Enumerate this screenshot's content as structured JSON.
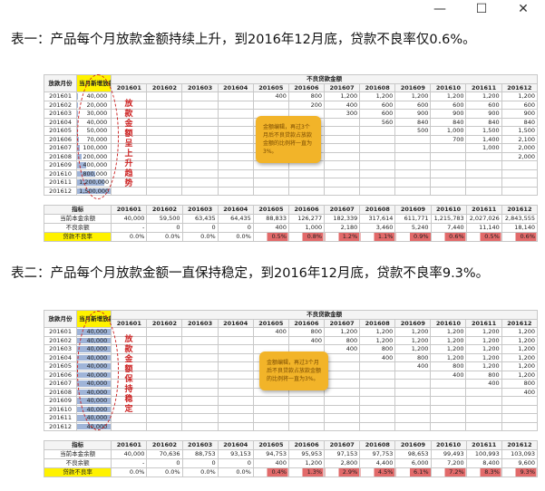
{
  "window": {
    "minimize": "—",
    "maximize": "☐",
    "close": "✕"
  },
  "heading1": "表一：产品每个月放款金额持续上升，到2016年12月底，贷款不良率仅0.6%。",
  "heading2": "表二：产品每个月放款金额一直保持稳定，到2016年12月底，贷款不良率9.3%。",
  "table1": {
    "col_month": "放款月份",
    "col_amount": "当月新增放款金额(w)",
    "group_header": "不良贷款金额",
    "months": [
      "201601",
      "201602",
      "201603",
      "201604",
      "201605",
      "201606",
      "201607",
      "201608",
      "201609",
      "201610",
      "201611",
      "201612"
    ],
    "rows": [
      {
        "m": "201601",
        "amt": "40,000",
        "frac": 0.03
      },
      {
        "m": "201602",
        "amt": "20,000",
        "frac": 0.015
      },
      {
        "m": "201603",
        "amt": "30,000",
        "frac": 0.02
      },
      {
        "m": "201604",
        "amt": "40,000",
        "frac": 0.03
      },
      {
        "m": "201605",
        "amt": "50,000",
        "frac": 0.035
      },
      {
        "m": "201606",
        "amt": "70,000",
        "frac": 0.05
      },
      {
        "m": "201607",
        "amt": "100,000",
        "frac": 0.07
      },
      {
        "m": "201608",
        "amt": "200,000",
        "frac": 0.14
      },
      {
        "m": "201609",
        "amt": "400,000",
        "frac": 0.27
      },
      {
        "m": "201610",
        "amt": "800,000",
        "frac": 0.54
      },
      {
        "m": "201611",
        "amt": "1,200,000",
        "frac": 0.8
      },
      {
        "m": "201612",
        "amt": "1,500,000",
        "frac": 1.0
      }
    ],
    "vertical_note": "放款金额呈上升趋势",
    "callout": "金额编辑，再过3个月后不良贷款占放款金额的比例将一直为3%。",
    "summary_headers": [
      "指标",
      "201601",
      "201602",
      "201603",
      "201604",
      "201605",
      "201606",
      "201607",
      "201608",
      "201609",
      "201610",
      "201611",
      "201612"
    ],
    "summary_rows": [
      [
        "当前本金余额",
        "40,000",
        "59,500",
        "63,435",
        "64,435",
        "88,833",
        "126,277",
        "182,339",
        "317,614",
        "611,771",
        "1,215,783",
        "2,027,026",
        "2,843,555"
      ],
      [
        "不良余额",
        "-",
        "0",
        "0",
        "0",
        "400",
        "1,000",
        "2,180",
        "3,460",
        "5,240",
        "7,440",
        "11,140",
        "18,140"
      ],
      [
        "贷款不良率",
        "0.0%",
        "0.0%",
        "0.0%",
        "0.0%",
        "0.5%",
        "0.8%",
        "1.2%",
        "1.1%",
        "0.9%",
        "0.6%",
        "0.5%",
        "0.6%"
      ]
    ],
    "diag": [
      [
        "400",
        "800",
        "1,200",
        "1,200",
        "1,200",
        "1,200",
        "1,200",
        "1,200"
      ],
      [
        "200",
        "400",
        "600",
        "600",
        "600",
        "600",
        "600"
      ],
      [
        "300",
        "600",
        "900",
        "900",
        "900",
        "900"
      ],
      [
        "560",
        "840",
        "840",
        "840",
        "840"
      ],
      [
        "500",
        "1,000",
        "1,500",
        "1,500",
        "1,500"
      ],
      [
        "700",
        "1,400",
        "2,100",
        "2,100"
      ],
      [
        "1,000",
        "2,000",
        "3,000"
      ],
      [
        "2,000",
        "4,000"
      ],
      [
        "4,000"
      ]
    ]
  },
  "table2": {
    "col_month": "放款月份",
    "col_amount": "当月新增放款金额(w)",
    "group_header": "不良贷款金额",
    "months": [
      "201601",
      "201602",
      "201603",
      "201604",
      "201605",
      "201606",
      "201607",
      "201608",
      "201609",
      "201610",
      "201611",
      "201612"
    ],
    "rows": [
      {
        "m": "201601",
        "amt": "40,000",
        "frac": 1
      },
      {
        "m": "201602",
        "amt": "40,000",
        "frac": 1
      },
      {
        "m": "201603",
        "amt": "40,000",
        "frac": 1
      },
      {
        "m": "201604",
        "amt": "40,000",
        "frac": 1
      },
      {
        "m": "201605",
        "amt": "40,000",
        "frac": 1
      },
      {
        "m": "201606",
        "amt": "40,000",
        "frac": 1
      },
      {
        "m": "201607",
        "amt": "40,000",
        "frac": 1
      },
      {
        "m": "201608",
        "amt": "40,000",
        "frac": 1
      },
      {
        "m": "201609",
        "amt": "40,000",
        "frac": 1
      },
      {
        "m": "201610",
        "amt": "40,000",
        "frac": 1
      },
      {
        "m": "201611",
        "amt": "40,000",
        "frac": 1
      },
      {
        "m": "201612",
        "amt": "40,000",
        "frac": 1
      }
    ],
    "vertical_note": "放款金额保持稳定",
    "callout": "金额编辑，再过3个月后不良贷款占放款金额的比例将一直为3%。",
    "summary_headers": [
      "指标",
      "201601",
      "201602",
      "201603",
      "201604",
      "201605",
      "201606",
      "201607",
      "201608",
      "201609",
      "201610",
      "201611",
      "201612"
    ],
    "summary_rows": [
      [
        "当前本金余额",
        "40,000",
        "70,636",
        "88,753",
        "93,153",
        "94,753",
        "95,953",
        "97,153",
        "97,753",
        "98,653",
        "99,493",
        "100,993",
        "103,093"
      ],
      [
        "不良余额",
        "-",
        "0",
        "0",
        "0",
        "400",
        "1,200",
        "2,800",
        "4,400",
        "6,000",
        "7,200",
        "8,400",
        "9,600"
      ],
      [
        "贷款不良率",
        "0.0%",
        "0.0%",
        "0.0%",
        "0.0%",
        "0.4%",
        "1.3%",
        "2.9%",
        "4.5%",
        "6.1%",
        "7.2%",
        "8.3%",
        "9.3%"
      ]
    ],
    "diag": [
      [
        "400",
        "800",
        "1,200",
        "1,200",
        "1,200",
        "1,200",
        "1,200",
        "1,200"
      ],
      [
        "400",
        "800",
        "1,200",
        "1,200",
        "1,200",
        "1,200",
        "1,200"
      ],
      [
        "400",
        "800",
        "1,200",
        "1,200",
        "1,200",
        "1,200"
      ],
      [
        "400",
        "800",
        "1,200",
        "1,200",
        "1,200"
      ],
      [
        "400",
        "800",
        "1,200",
        "1,200"
      ],
      [
        "400",
        "800",
        "1,200"
      ],
      [
        "400",
        "800"
      ],
      [
        "400"
      ]
    ]
  },
  "colors": {
    "bar": "#9fb4d8",
    "highlight": "#fff200",
    "bad": "#e26a6a",
    "callout": "#f2b429",
    "oval": "#cc2222"
  }
}
